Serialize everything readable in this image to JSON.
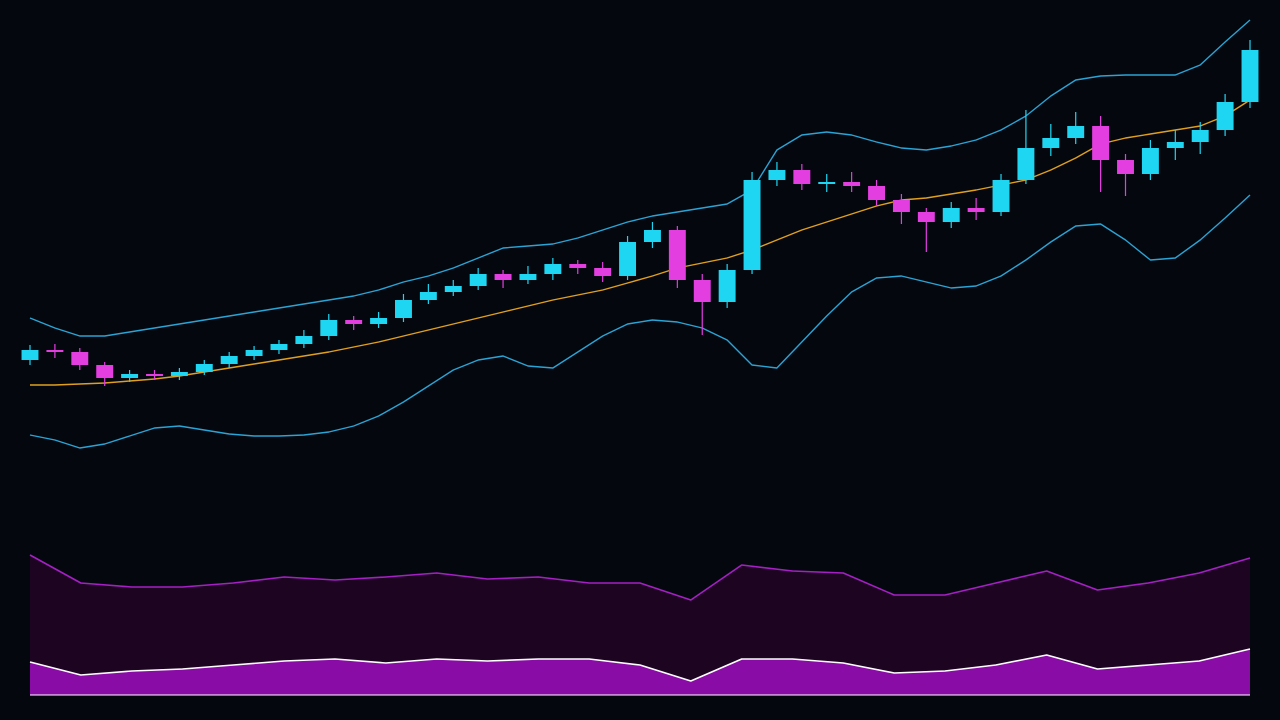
{
  "chart_data": [
    {
      "type": "candlestick",
      "up_color": "#1fd6f2",
      "down_color": "#e23ee0",
      "ylim": [
        0,
        720
      ],
      "open": [
        360,
        370,
        368,
        355,
        342,
        346,
        344,
        348,
        356,
        364,
        370,
        376,
        384,
        400,
        396,
        402,
        420,
        428,
        434,
        446,
        440,
        446,
        456,
        452,
        444,
        478,
        490,
        440,
        418,
        450,
        540,
        550,
        536,
        538,
        534,
        520,
        508,
        498,
        512,
        508,
        540,
        572,
        582,
        594,
        560,
        546,
        572,
        578,
        590,
        618
      ],
      "high": [
        375,
        376,
        372,
        358,
        350,
        350,
        352,
        360,
        368,
        374,
        380,
        390,
        406,
        404,
        408,
        426,
        436,
        440,
        452,
        450,
        454,
        462,
        460,
        458,
        484,
        498,
        494,
        446,
        456,
        548,
        558,
        556,
        546,
        548,
        540,
        526,
        512,
        518,
        522,
        546,
        610,
        596,
        608,
        604,
        566,
        580,
        590,
        598,
        626,
        680
      ],
      "low": [
        355,
        362,
        350,
        334,
        338,
        340,
        340,
        345,
        352,
        360,
        366,
        372,
        380,
        390,
        392,
        398,
        416,
        424,
        430,
        432,
        436,
        440,
        446,
        438,
        440,
        472,
        432,
        385,
        412,
        446,
        534,
        530,
        528,
        528,
        514,
        496,
        468,
        492,
        500,
        504,
        536,
        564,
        576,
        528,
        524,
        540,
        560,
        566,
        584,
        612
      ],
      "close": [
        370,
        368,
        355,
        342,
        346,
        344,
        348,
        356,
        364,
        370,
        376,
        384,
        400,
        396,
        402,
        420,
        428,
        434,
        446,
        440,
        446,
        456,
        452,
        444,
        478,
        490,
        440,
        418,
        450,
        540,
        550,
        536,
        538,
        534,
        520,
        508,
        498,
        512,
        508,
        540,
        572,
        582,
        594,
        560,
        546,
        572,
        578,
        590,
        618,
        670
      ],
      "series": [
        {
          "color": "#2aa4d4",
          "values": [
            402,
            392,
            384,
            384,
            388,
            392,
            396,
            400,
            404,
            408,
            412,
            416,
            420,
            424,
            430,
            438,
            444,
            452,
            462,
            472,
            474,
            476,
            482,
            490,
            498,
            504,
            508,
            512,
            516,
            530,
            570,
            585,
            588,
            585,
            578,
            572,
            570,
            574,
            580,
            590,
            604,
            624,
            640,
            644,
            645,
            645,
            645,
            655,
            678,
            700
          ]
        },
        {
          "color": "#e0a01e",
          "values": [
            335,
            335,
            336,
            337,
            339,
            341,
            344,
            348,
            352,
            356,
            360,
            364,
            368,
            373,
            378,
            384,
            390,
            396,
            402,
            408,
            414,
            420,
            425,
            430,
            437,
            444,
            452,
            457,
            462,
            470,
            480,
            490,
            498,
            506,
            514,
            520,
            522,
            526,
            530,
            535,
            540,
            550,
            562,
            576,
            582,
            586,
            590,
            594,
            604,
            620
          ]
        },
        {
          "color": "#2aa4d4",
          "values": [
            285,
            280,
            272,
            276,
            284,
            292,
            294,
            290,
            286,
            284,
            284,
            285,
            288,
            294,
            304,
            318,
            334,
            350,
            360,
            364,
            354,
            352,
            368,
            384,
            396,
            400,
            398,
            392,
            380,
            355,
            352,
            378,
            404,
            428,
            442,
            444,
            438,
            432,
            434,
            444,
            460,
            478,
            494,
            496,
            480,
            460,
            462,
            480,
            502,
            525
          ]
        }
      ]
    },
    {
      "type": "area",
      "ylim": [
        0,
        160
      ],
      "xlim": [
        0,
        24
      ],
      "x": [
        0,
        1,
        2,
        3,
        4,
        5,
        6,
        7,
        8,
        9,
        10,
        11,
        12,
        13,
        14,
        15,
        16,
        17,
        18,
        19,
        20,
        21,
        22,
        23,
        24
      ],
      "series": [
        {
          "color": "#a51fc4",
          "fill": "#1d0522",
          "values": [
            140,
            112,
            108,
            108,
            112,
            118,
            115,
            118,
            122,
            116,
            118,
            112,
            112,
            95,
            130,
            124,
            122,
            100,
            100,
            112,
            124,
            105,
            112,
            122,
            137
          ]
        },
        {
          "color": "#ffffff",
          "fill": "#8a0ca6",
          "values": [
            33,
            20,
            24,
            26,
            30,
            34,
            36,
            32,
            36,
            34,
            36,
            36,
            30,
            14,
            36,
            36,
            32,
            22,
            24,
            30,
            40,
            26,
            30,
            34,
            46
          ]
        }
      ]
    }
  ]
}
